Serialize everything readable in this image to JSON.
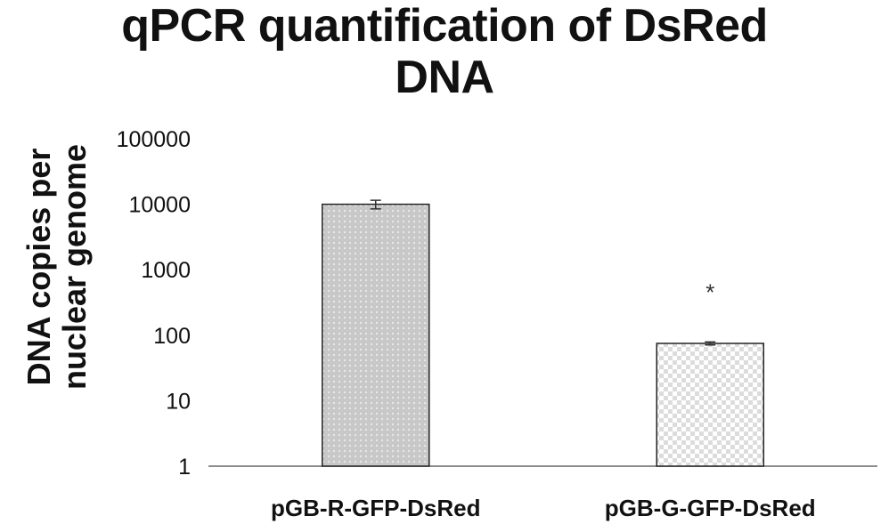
{
  "chart_data": {
    "type": "bar",
    "title_line1": "qPCR quantification of DsRed",
    "title_line2": "DNA",
    "ylabel_line1": "DNA copies per",
    "ylabel_line2": "nuclear genome",
    "xlabel": "",
    "yscale": "log",
    "ylim": [
      1,
      100000
    ],
    "yticks": [
      "1",
      "10",
      "100",
      "1000",
      "10000",
      "100000"
    ],
    "grid": false,
    "categories": [
      "pGB-R-GFP-DsRed",
      "pGB-G-GFP-DsRed"
    ],
    "values": [
      10000,
      75
    ],
    "errors": [
      1500,
      4
    ],
    "annotations": [
      {
        "category_index": 1,
        "text": "*",
        "y": 600
      }
    ],
    "colors": {
      "bar1_fill": "#c8c8c8",
      "bar1_dot": "#ececec",
      "bar2_fill": "#ffffff",
      "bar2_check": "#dcdcdc",
      "stroke": "#222222"
    }
  }
}
